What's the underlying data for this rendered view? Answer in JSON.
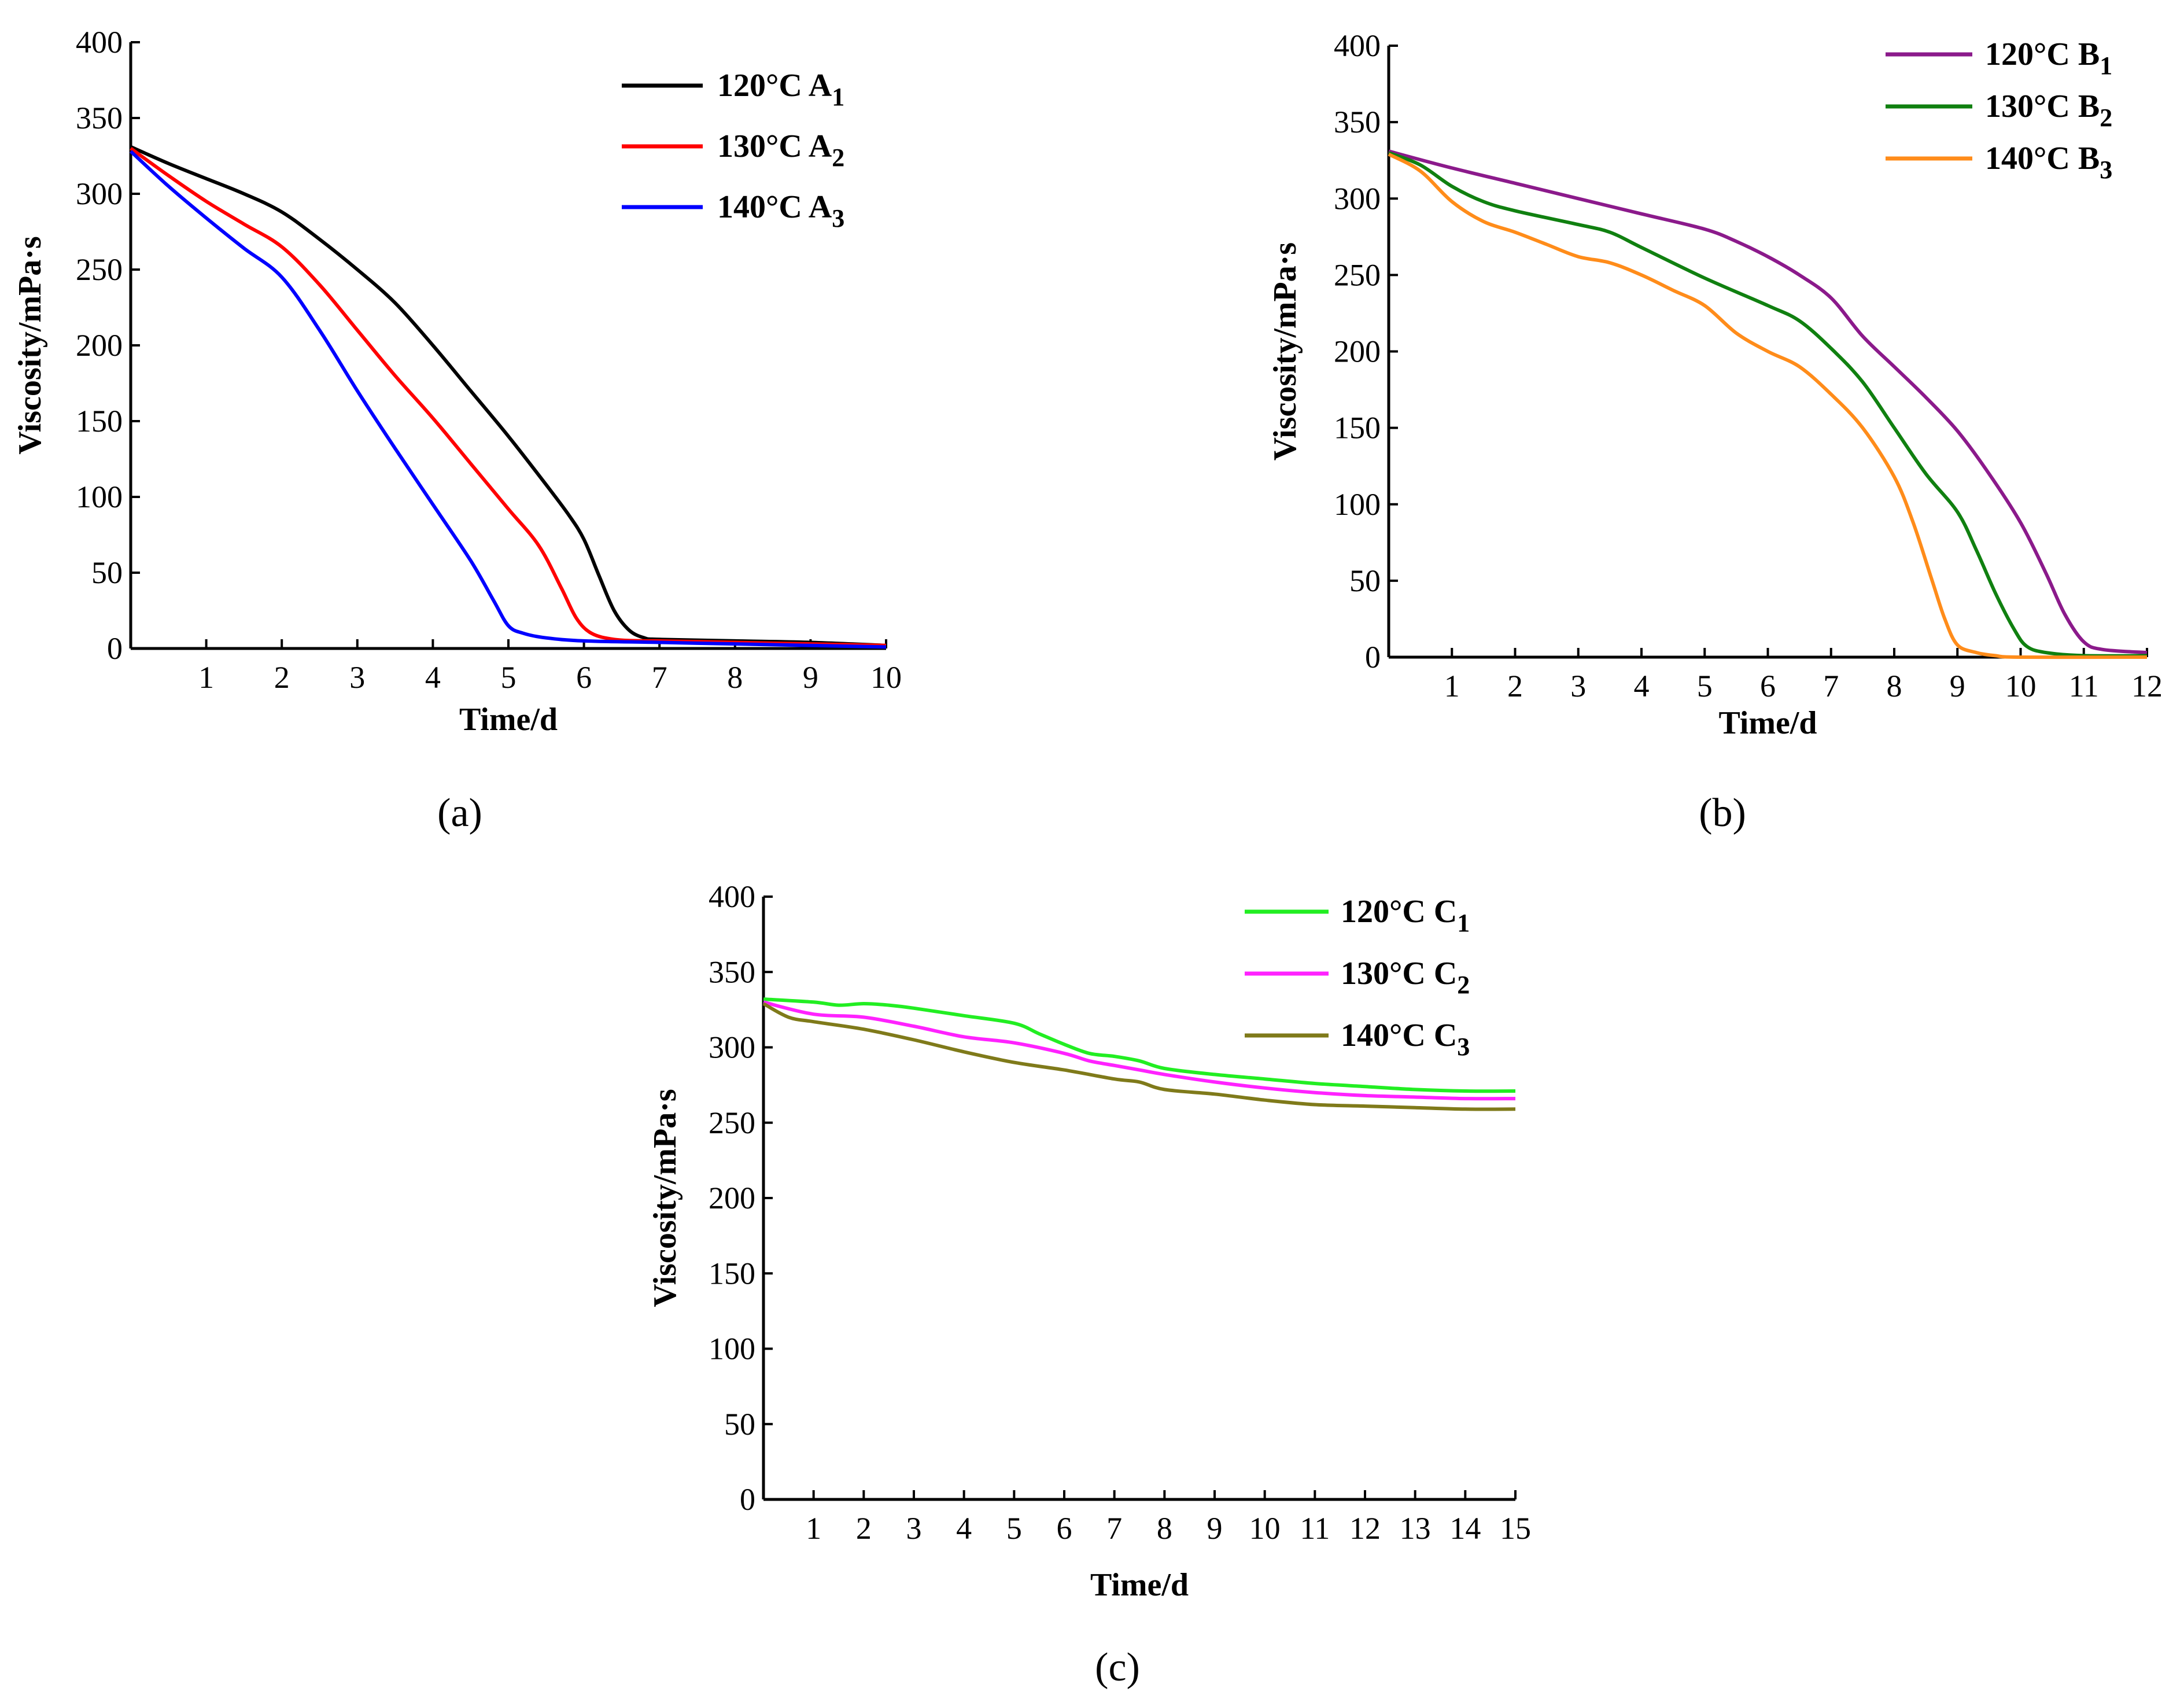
{
  "chart_data": [
    {
      "type": "line",
      "panel": "a",
      "caption": "(a)",
      "xlabel": "Time/d",
      "ylabel": "Viscosity/mPa·s",
      "xlim": [
        0,
        10
      ],
      "ylim": [
        0,
        400
      ],
      "xticks": [
        1,
        2,
        3,
        4,
        5,
        6,
        7,
        8,
        9,
        10
      ],
      "yticks": [
        0,
        50,
        100,
        150,
        200,
        250,
        300,
        350,
        400
      ],
      "legend_position": "top-right",
      "series": [
        {
          "name": "120°C A",
          "sub": "1",
          "color": "#000000",
          "x": [
            0,
            0.5,
            1,
            1.5,
            2,
            2.5,
            3,
            3.5,
            4,
            4.5,
            5,
            5.5,
            5.8,
            6,
            6.2,
            6.4,
            6.6,
            6.8,
            7,
            8,
            9,
            10
          ],
          "y": [
            331,
            320,
            310,
            300,
            288,
            270,
            250,
            228,
            200,
            170,
            140,
            108,
            88,
            72,
            48,
            25,
            12,
            7,
            6,
            5,
            4,
            2
          ]
        },
        {
          "name": "130°C A",
          "sub": "2",
          "color": "#ff0000",
          "x": [
            0,
            0.5,
            1,
            1.5,
            2,
            2.5,
            3,
            3.5,
            4,
            4.5,
            5,
            5.4,
            5.7,
            5.9,
            6.1,
            6.4,
            6.8,
            7,
            8,
            9,
            10
          ],
          "y": [
            330,
            312,
            295,
            280,
            265,
            240,
            210,
            180,
            152,
            122,
            92,
            68,
            40,
            20,
            10,
            6,
            5,
            5,
            4,
            3,
            2
          ]
        },
        {
          "name": "140°C A",
          "sub": "3",
          "color": "#0000ff",
          "x": [
            0,
            0.5,
            1,
            1.5,
            2,
            2.5,
            3,
            3.5,
            4,
            4.5,
            4.8,
            5,
            5.2,
            5.5,
            6,
            7,
            8,
            9,
            10
          ],
          "y": [
            328,
            305,
            284,
            264,
            245,
            210,
            170,
            132,
            95,
            58,
            32,
            15,
            10,
            7,
            5,
            4,
            3,
            2,
            1
          ]
        }
      ]
    },
    {
      "type": "line",
      "panel": "b",
      "caption": "(b)",
      "xlabel": "Time/d",
      "ylabel": "Viscosity/mPa·s",
      "xlim": [
        0,
        12
      ],
      "ylim": [
        0,
        400
      ],
      "xticks": [
        1,
        2,
        3,
        4,
        5,
        6,
        7,
        8,
        9,
        10,
        11,
        12
      ],
      "yticks": [
        0,
        50,
        100,
        150,
        200,
        250,
        300,
        350,
        400
      ],
      "legend_position": "top-right",
      "series": [
        {
          "name": "120°C B",
          "sub": "1",
          "color": "#8b1a8b",
          "x": [
            0,
            1,
            2,
            3,
            4,
            5,
            5.5,
            6,
            6.5,
            7,
            7.5,
            8,
            8.5,
            9,
            9.5,
            10,
            10.4,
            10.7,
            11,
            11.3,
            12
          ],
          "y": [
            331,
            320,
            310,
            300,
            290,
            280,
            272,
            262,
            250,
            235,
            210,
            190,
            170,
            148,
            120,
            88,
            55,
            28,
            10,
            5,
            3
          ]
        },
        {
          "name": "130°C B",
          "sub": "2",
          "color": "#108010",
          "x": [
            0,
            0.5,
            1,
            1.5,
            2,
            3,
            3.5,
            4,
            5,
            6,
            6.5,
            7,
            7.5,
            8,
            8.5,
            9,
            9.3,
            9.6,
            9.9,
            10.1,
            10.4,
            11,
            12
          ],
          "y": [
            330,
            322,
            308,
            298,
            292,
            283,
            278,
            268,
            248,
            230,
            220,
            202,
            180,
            150,
            120,
            95,
            70,
            42,
            18,
            7,
            3,
            1,
            1
          ]
        },
        {
          "name": "140°C B",
          "sub": "3",
          "color": "#ff8c1a",
          "x": [
            0,
            0.5,
            1,
            1.5,
            2,
            2.5,
            3,
            3.5,
            4,
            4.5,
            5,
            5.5,
            6,
            6.5,
            7,
            7.5,
            8,
            8.3,
            8.6,
            8.8,
            9,
            9.3,
            9.6,
            10,
            12
          ],
          "y": [
            329,
            318,
            298,
            285,
            278,
            270,
            262,
            258,
            250,
            240,
            230,
            212,
            200,
            190,
            172,
            150,
            118,
            88,
            50,
            25,
            8,
            3,
            1,
            0,
            0
          ]
        }
      ]
    },
    {
      "type": "line",
      "panel": "c",
      "caption": "(c)",
      "xlabel": "Time/d",
      "ylabel": "Viscosity/mPa·s",
      "xlim": [
        0,
        15
      ],
      "ylim": [
        0,
        400
      ],
      "xticks": [
        1,
        2,
        3,
        4,
        5,
        6,
        7,
        8,
        9,
        10,
        11,
        12,
        13,
        14,
        15
      ],
      "yticks": [
        0,
        50,
        100,
        150,
        200,
        250,
        300,
        350,
        400
      ],
      "legend_position": "top-right",
      "series": [
        {
          "name": "120°C C",
          "sub": "1",
          "color": "#22ee22",
          "x": [
            0,
            1,
            1.5,
            2,
            2.5,
            3,
            4,
            5,
            5.5,
            6,
            6.5,
            7,
            7.5,
            8,
            9,
            10,
            11,
            12,
            13,
            14,
            15
          ],
          "y": [
            332,
            330,
            328,
            329,
            328,
            326,
            321,
            316,
            309,
            302,
            296,
            294,
            291,
            286,
            282,
            279,
            276,
            274,
            272,
            271,
            271
          ]
        },
        {
          "name": "130°C C",
          "sub": "2",
          "color": "#ff22ff",
          "x": [
            0,
            1,
            2,
            3,
            4,
            5,
            6,
            6.5,
            7,
            7.5,
            8,
            9,
            10,
            11,
            12,
            13,
            14,
            15
          ],
          "y": [
            330,
            322,
            320,
            314,
            307,
            303,
            296,
            291,
            288,
            285,
            282,
            277,
            273,
            270,
            268,
            267,
            266,
            266
          ]
        },
        {
          "name": "140°C C",
          "sub": "3",
          "color": "#7f7a1a",
          "x": [
            0,
            0.5,
            1,
            2,
            3,
            4,
            5,
            6,
            7,
            7.5,
            8,
            9,
            10,
            11,
            12,
            13,
            14,
            15
          ],
          "y": [
            329,
            320,
            317,
            312,
            305,
            297,
            290,
            285,
            279,
            277,
            272,
            269,
            265,
            262,
            261,
            260,
            259,
            259
          ]
        }
      ]
    }
  ]
}
